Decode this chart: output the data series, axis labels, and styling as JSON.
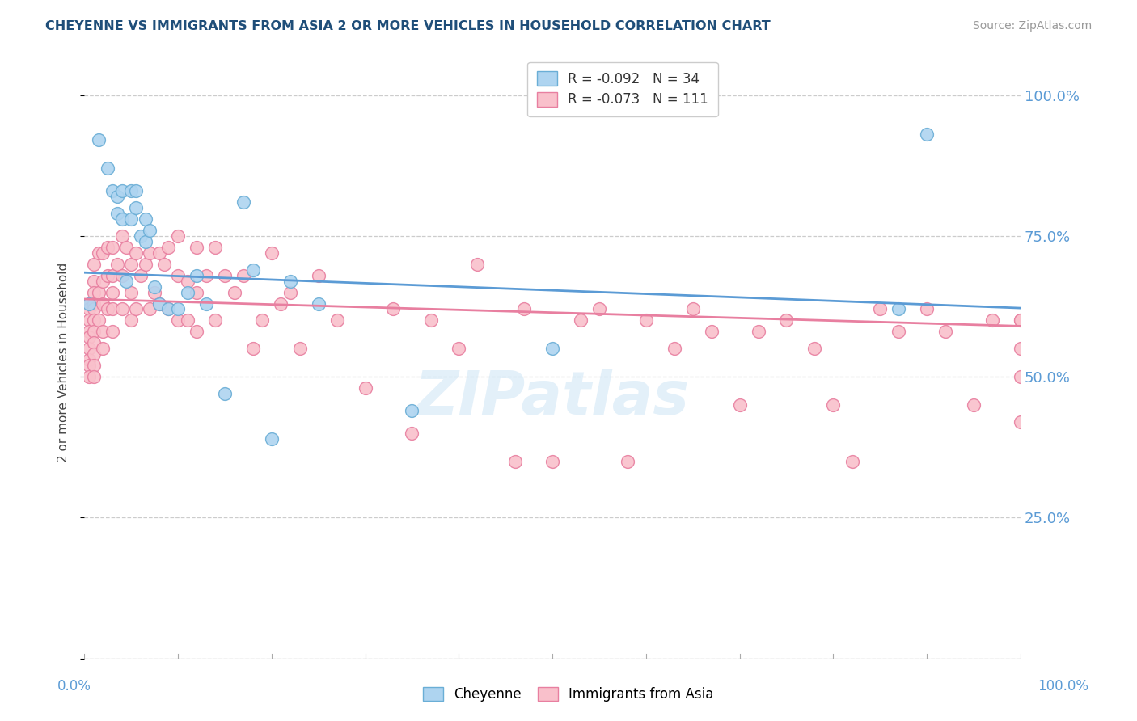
{
  "title": "CHEYENNE VS IMMIGRANTS FROM ASIA 2 OR MORE VEHICLES IN HOUSEHOLD CORRELATION CHART",
  "source": "Source: ZipAtlas.com",
  "ylabel": "2 or more Vehicles in Household",
  "cheyenne_color": "#aed4f0",
  "asia_color": "#f9c0cb",
  "cheyenne_edge_color": "#6aaed6",
  "asia_edge_color": "#e87fa0",
  "cheyenne_line_color": "#5b9bd5",
  "asia_line_color": "#e87fa0",
  "watermark": "ZIPatlas",
  "background_color": "#ffffff",
  "grid_color": "#cccccc",
  "title_color": "#1f4e79",
  "axis_label_color": "#5b9bd5",
  "cheyenne_scatter_x": [
    0.005,
    0.015,
    0.025,
    0.03,
    0.035,
    0.035,
    0.04,
    0.04,
    0.045,
    0.05,
    0.05,
    0.055,
    0.055,
    0.06,
    0.065,
    0.065,
    0.07,
    0.075,
    0.08,
    0.09,
    0.1,
    0.11,
    0.12,
    0.13,
    0.15,
    0.17,
    0.18,
    0.2,
    0.22,
    0.25,
    0.35,
    0.5,
    0.87,
    0.9
  ],
  "cheyenne_scatter_y": [
    0.63,
    0.92,
    0.87,
    0.83,
    0.82,
    0.79,
    0.83,
    0.78,
    0.67,
    0.83,
    0.78,
    0.83,
    0.8,
    0.75,
    0.78,
    0.74,
    0.76,
    0.66,
    0.63,
    0.62,
    0.62,
    0.65,
    0.68,
    0.63,
    0.47,
    0.81,
    0.69,
    0.39,
    0.67,
    0.63,
    0.44,
    0.55,
    0.62,
    0.93
  ],
  "asia_scatter_x": [
    0.005,
    0.005,
    0.005,
    0.005,
    0.005,
    0.005,
    0.005,
    0.005,
    0.005,
    0.01,
    0.01,
    0.01,
    0.01,
    0.01,
    0.01,
    0.01,
    0.01,
    0.01,
    0.01,
    0.01,
    0.015,
    0.015,
    0.015,
    0.02,
    0.02,
    0.02,
    0.02,
    0.02,
    0.025,
    0.025,
    0.025,
    0.03,
    0.03,
    0.03,
    0.03,
    0.03,
    0.035,
    0.04,
    0.04,
    0.04,
    0.045,
    0.05,
    0.05,
    0.05,
    0.055,
    0.055,
    0.06,
    0.065,
    0.07,
    0.07,
    0.075,
    0.08,
    0.08,
    0.085,
    0.09,
    0.09,
    0.1,
    0.1,
    0.1,
    0.11,
    0.11,
    0.12,
    0.12,
    0.12,
    0.13,
    0.14,
    0.14,
    0.15,
    0.16,
    0.17,
    0.18,
    0.19,
    0.2,
    0.21,
    0.22,
    0.23,
    0.25,
    0.27,
    0.3,
    0.33,
    0.35,
    0.37,
    0.4,
    0.42,
    0.46,
    0.47,
    0.5,
    0.53,
    0.55,
    0.58,
    0.6,
    0.63,
    0.65,
    0.67,
    0.7,
    0.72,
    0.75,
    0.78,
    0.8,
    0.82,
    0.85,
    0.87,
    0.9,
    0.92,
    0.95,
    0.97,
    1.0,
    1.0,
    1.0,
    1.0,
    1.0
  ],
  "asia_scatter_y": [
    0.63,
    0.62,
    0.6,
    0.58,
    0.57,
    0.55,
    0.53,
    0.52,
    0.5,
    0.7,
    0.67,
    0.65,
    0.63,
    0.62,
    0.6,
    0.58,
    0.56,
    0.54,
    0.52,
    0.5,
    0.72,
    0.65,
    0.6,
    0.72,
    0.67,
    0.63,
    0.58,
    0.55,
    0.73,
    0.68,
    0.62,
    0.73,
    0.68,
    0.65,
    0.62,
    0.58,
    0.7,
    0.75,
    0.68,
    0.62,
    0.73,
    0.7,
    0.65,
    0.6,
    0.72,
    0.62,
    0.68,
    0.7,
    0.72,
    0.62,
    0.65,
    0.72,
    0.63,
    0.7,
    0.73,
    0.62,
    0.75,
    0.68,
    0.6,
    0.67,
    0.6,
    0.73,
    0.65,
    0.58,
    0.68,
    0.73,
    0.6,
    0.68,
    0.65,
    0.68,
    0.55,
    0.6,
    0.72,
    0.63,
    0.65,
    0.55,
    0.68,
    0.6,
    0.48,
    0.62,
    0.4,
    0.6,
    0.55,
    0.7,
    0.35,
    0.62,
    0.35,
    0.6,
    0.62,
    0.35,
    0.6,
    0.55,
    0.62,
    0.58,
    0.45,
    0.58,
    0.6,
    0.55,
    0.45,
    0.35,
    0.62,
    0.58,
    0.62,
    0.58,
    0.45,
    0.6,
    0.6,
    0.42,
    0.55,
    0.5,
    0.6
  ],
  "xlim": [
    0,
    1.0
  ],
  "ylim": [
    0.0,
    1.05
  ],
  "yticks": [
    0.0,
    0.25,
    0.5,
    0.75,
    1.0
  ],
  "ytick_labels": [
    "",
    "25.0%",
    "50.0%",
    "75.0%",
    "100.0%"
  ],
  "cheyenne_line_y0": 0.685,
  "cheyenne_line_y1": 0.622,
  "asia_line_y0": 0.638,
  "asia_line_y1": 0.59
}
